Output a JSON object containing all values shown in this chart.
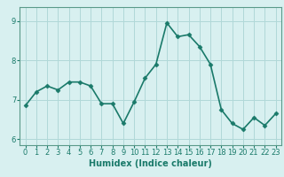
{
  "x": [
    0,
    1,
    2,
    3,
    4,
    5,
    6,
    7,
    8,
    9,
    10,
    11,
    12,
    13,
    14,
    15,
    16,
    17,
    18,
    19,
    20,
    21,
    22,
    23
  ],
  "y": [
    6.85,
    7.2,
    7.35,
    7.25,
    7.45,
    7.45,
    7.35,
    6.9,
    6.9,
    6.4,
    6.95,
    7.55,
    7.9,
    8.95,
    8.6,
    8.65,
    8.35,
    7.9,
    6.75,
    6.4,
    6.25,
    6.55,
    6.35,
    6.65
  ],
  "line_color": "#1a7a6a",
  "marker": "D",
  "marker_size": 2.5,
  "linewidth": 1.2,
  "bg_color": "#d8f0f0",
  "plot_bg_color": "#d8f0f0",
  "grid_color": "#b0d8d8",
  "xlabel": "Humidex (Indice chaleur)",
  "xlabel_fontsize": 7,
  "tick_fontsize": 6,
  "xlim": [
    -0.5,
    23.5
  ],
  "ylim": [
    5.85,
    9.35
  ],
  "yticks": [
    6,
    7,
    8,
    9
  ],
  "xticks": [
    0,
    1,
    2,
    3,
    4,
    5,
    6,
    7,
    8,
    9,
    10,
    11,
    12,
    13,
    14,
    15,
    16,
    17,
    18,
    19,
    20,
    21,
    22,
    23
  ]
}
